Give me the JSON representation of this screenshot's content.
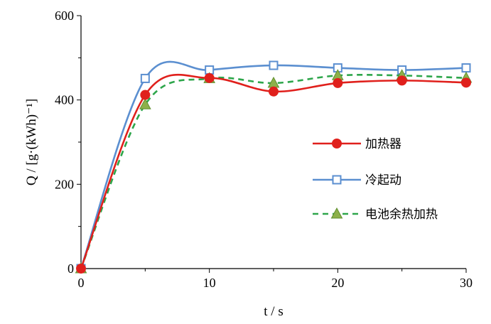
{
  "chart_data": {
    "type": "line",
    "ylabel": "Q / [g·(kWh)⁻¹]",
    "xlabel": "t / s",
    "xlim": [
      0,
      30
    ],
    "ylim": [
      0,
      600
    ],
    "x_ticks": [
      0,
      10,
      20,
      30
    ],
    "y_ticks": [
      0,
      200,
      400,
      600
    ],
    "grid": false,
    "legend_position": "right",
    "x": [
      0,
      5,
      10,
      15,
      20,
      25,
      30
    ],
    "series": [
      {
        "name": "加热器",
        "values": [
          0,
          412,
          452,
          420,
          440,
          446,
          441
        ],
        "color": "#e0201c",
        "marker": "circle",
        "line": "solid"
      },
      {
        "name": "冷起动",
        "values": [
          0,
          451,
          471,
          482,
          476,
          471,
          476
        ],
        "color": "#5b8fd0",
        "marker": "square",
        "line": "solid"
      },
      {
        "name": "电池余热加热",
        "values": [
          0,
          389,
          451,
          440,
          458,
          458,
          452
        ],
        "color": "#2ea64b",
        "marker": "triangle",
        "line": "dashed"
      }
    ]
  }
}
